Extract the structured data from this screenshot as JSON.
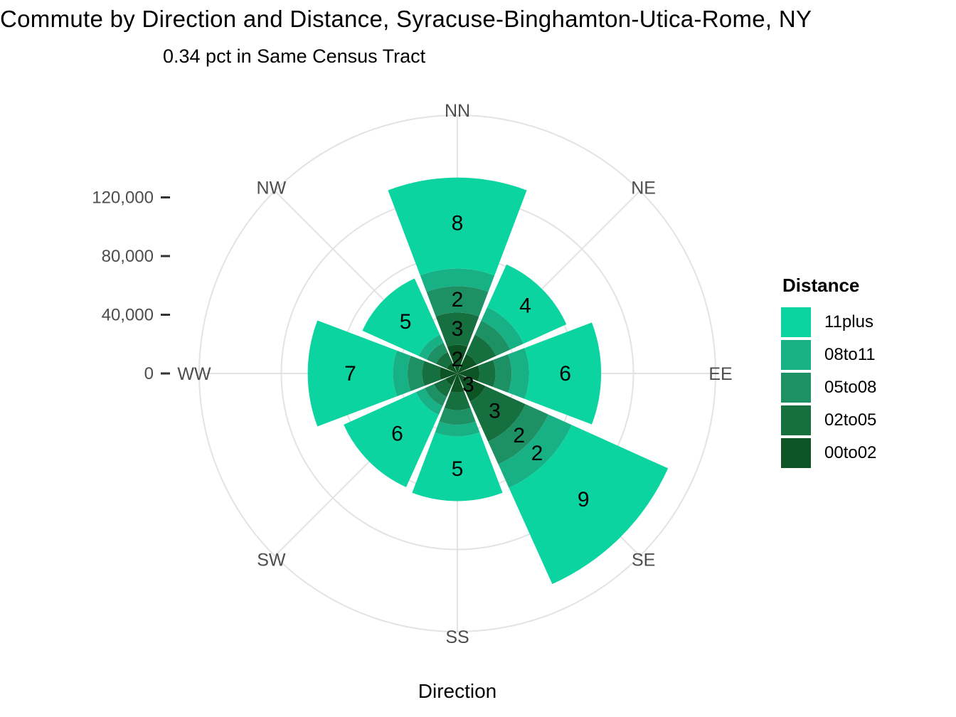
{
  "header": {
    "title": "Commute by Direction and Distance, Syracuse-Binghamton-Utica-Rome, NY",
    "subtitle": "0.34 pct in Same Census Tract"
  },
  "axis": {
    "x_title": "Direction",
    "radial_tick_labels": [
      "0",
      "40,000",
      "80,000",
      "120,000"
    ]
  },
  "legend": {
    "title": "Distance",
    "entries": [
      {
        "label": "11plus",
        "color": "#0BD4A1"
      },
      {
        "label": "08to11",
        "color": "#18B186"
      },
      {
        "label": "05to08",
        "color": "#1D9164"
      },
      {
        "label": "02to05",
        "color": "#166F3E"
      },
      {
        "label": "00to02",
        "color": "#0C5424"
      }
    ]
  },
  "chart_data": {
    "type": "polar_stacked_bar",
    "title": "Commute by Direction and Distance, Syracuse-Binghamton-Utica-Rome, NY",
    "subtitle": "0.34 pct in Same Census Tract",
    "xlabel": "Direction",
    "legend_title": "Distance",
    "legend_position": "right",
    "grid": true,
    "categories": [
      "NN",
      "NE",
      "EE",
      "SE",
      "SS",
      "SW",
      "WW",
      "NW"
    ],
    "series": [
      {
        "name": "00to02",
        "color": "#0C5424",
        "values": [
          19500,
          14500,
          15000,
          21000,
          13000,
          9000,
          12000,
          8000
        ],
        "labels": [
          "2",
          null,
          null,
          "3",
          null,
          null,
          null,
          null
        ]
      },
      {
        "name": "02to05",
        "color": "#166F3E",
        "values": [
          22000,
          14500,
          11000,
          30000,
          12000,
          8500,
          12000,
          8000
        ],
        "labels": [
          "3",
          null,
          null,
          "3",
          null,
          null,
          null,
          null
        ]
      },
      {
        "name": "05to08",
        "color": "#1D9164",
        "values": [
          18000,
          10500,
          11000,
          17000,
          10000,
          7000,
          10000,
          7000
        ],
        "labels": [
          "2",
          null,
          null,
          "2",
          null,
          null,
          null,
          null
        ]
      },
      {
        "name": "08to11",
        "color": "#18B186",
        "values": [
          12000,
          10000,
          12000,
          17500,
          8000,
          6500,
          10000,
          6000
        ],
        "labels": [
          null,
          null,
          null,
          "2",
          null,
          null,
          null,
          null
        ]
      },
      {
        "name": "11plus",
        "color": "#0BD4A1",
        "values": [
          62000,
          32000,
          49000,
          72000,
          44000,
          54000,
          58000,
          42000
        ],
        "labels": [
          "8",
          "4",
          "6",
          "9",
          "5",
          "6",
          "7",
          "5"
        ]
      }
    ],
    "radial_axis": {
      "ticks": [
        0,
        40000,
        80000,
        120000
      ],
      "tick_labels": [
        "0",
        "40,000",
        "80,000",
        "120,000"
      ],
      "rlim": [
        0,
        176000
      ]
    }
  }
}
